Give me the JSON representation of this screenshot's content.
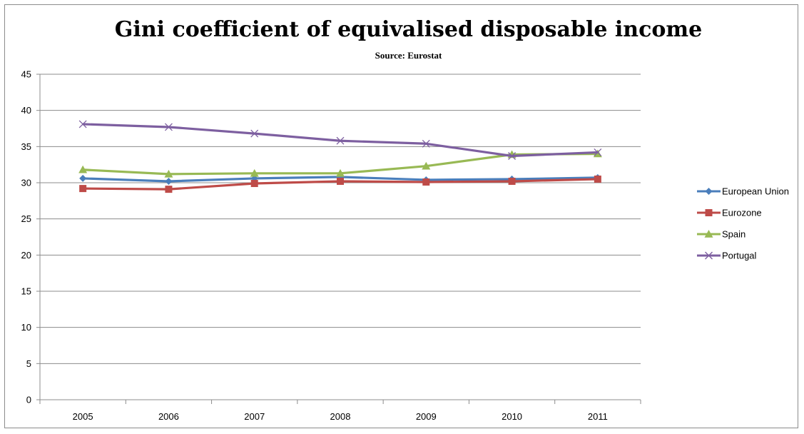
{
  "chart_data": {
    "type": "line",
    "title": "Gini coefficient of equivalised disposable income",
    "subtitle": "Source: Eurostat",
    "categories": [
      "2005",
      "2006",
      "2007",
      "2008",
      "2009",
      "2010",
      "2011"
    ],
    "ylim": [
      0,
      45
    ],
    "yticks": [
      0,
      5,
      10,
      15,
      20,
      25,
      30,
      35,
      40,
      45
    ],
    "grid": true,
    "legend_position": "right",
    "series": [
      {
        "name": "European Union",
        "color": "#4a7ebb",
        "marker": "diamond",
        "values": [
          30.6,
          30.2,
          30.6,
          30.8,
          30.4,
          30.5,
          30.7
        ]
      },
      {
        "name": "Eurozone",
        "color": "#be4b48",
        "marker": "square",
        "values": [
          29.2,
          29.1,
          29.9,
          30.2,
          30.1,
          30.2,
          30.5
        ]
      },
      {
        "name": "Spain",
        "color": "#98b954",
        "marker": "triangle",
        "values": [
          31.8,
          31.2,
          31.3,
          31.3,
          32.3,
          33.9,
          34.0
        ]
      },
      {
        "name": "Portugal",
        "color": "#7d5fa0",
        "marker": "x",
        "values": [
          38.1,
          37.7,
          36.8,
          35.8,
          35.4,
          33.7,
          34.2
        ]
      }
    ]
  }
}
